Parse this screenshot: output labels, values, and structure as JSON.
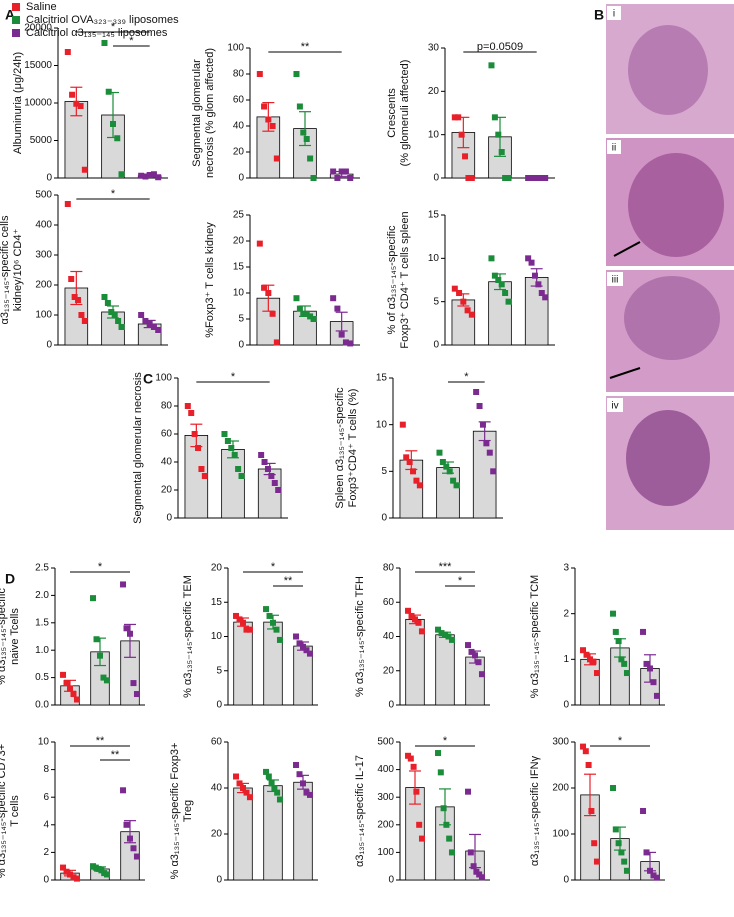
{
  "panel_labels": [
    "A",
    "B",
    "C",
    "D"
  ],
  "legend": [
    {
      "name": "Saline",
      "color": "#e8202a"
    },
    {
      "name": "Calcitriol OVA₃₂₃₋₃₃₉ liposomes",
      "color": "#1a8c3a"
    },
    {
      "name": "Calcitriol α3₁₃₅₋₁₄₅ liposomes",
      "color": "#7b2a8f"
    }
  ],
  "histology_panels": [
    "i",
    "ii",
    "iii",
    "iv"
  ],
  "chart_data": [
    {
      "type": "bar",
      "ylabel": [
        "Albuminuria (μg/24h)"
      ],
      "ylim": [
        0,
        20000
      ],
      "yticks": [
        0,
        5000,
        10000,
        15000,
        20000
      ],
      "means": [
        10200,
        8400,
        300
      ],
      "errors": [
        1900,
        3000,
        150
      ],
      "points": [
        [
          16800,
          11100,
          9900,
          9600,
          1100
        ],
        [
          18000,
          11500,
          7200,
          5300,
          500
        ],
        [
          300,
          200,
          400,
          500,
          100
        ]
      ],
      "annotations": [
        {
          "text": "*",
          "span": [
            0,
            2
          ]
        },
        {
          "text": "*",
          "span": [
            1,
            2
          ]
        }
      ]
    },
    {
      "type": "bar",
      "ylabel": [
        "Segmental glomerular",
        "necrosis (% glom affected)"
      ],
      "ylim": [
        0,
        100
      ],
      "yticks": [
        0,
        20,
        40,
        60,
        80,
        100
      ],
      "means": [
        47,
        38,
        3
      ],
      "errors": [
        11,
        13,
        2
      ],
      "points": [
        [
          80,
          55,
          45,
          40,
          15
        ],
        [
          80,
          55,
          35,
          30,
          15,
          0
        ],
        [
          5,
          0,
          5,
          5,
          0
        ]
      ],
      "annotations": [
        {
          "text": "**",
          "span": [
            0,
            2
          ]
        }
      ]
    },
    {
      "type": "bar",
      "ylabel": [
        "Crescents",
        "(% glomeruli affected)"
      ],
      "ylim": [
        0,
        30
      ],
      "yticks": [
        0,
        10,
        20,
        30
      ],
      "means": [
        10.5,
        9.5,
        0
      ],
      "errors": [
        3.5,
        4.5,
        0
      ],
      "points": [
        [
          14,
          14,
          10,
          5,
          0,
          0
        ],
        [
          26,
          14,
          10,
          6,
          0,
          0
        ],
        [
          0,
          0,
          0,
          0,
          0
        ]
      ],
      "annotations": [
        {
          "text": "p=0.0509",
          "span": [
            0,
            2
          ]
        }
      ]
    },
    {
      "type": "bar",
      "ylabel": [
        "α3₁₃₅₋₁₄₅-specific cells",
        "kidney/10⁶ CD4⁺"
      ],
      "ylim": [
        0,
        500
      ],
      "yticks": [
        0,
        100,
        200,
        300,
        400,
        500
      ],
      "means": [
        190,
        110,
        70
      ],
      "errors": [
        55,
        20,
        12
      ],
      "points": [
        [
          470,
          220,
          160,
          150,
          100,
          80
        ],
        [
          160,
          140,
          110,
          100,
          80,
          60
        ],
        [
          100,
          80,
          70,
          60,
          50
        ]
      ],
      "annotations": [
        {
          "text": "*",
          "span": [
            0,
            2
          ]
        }
      ]
    },
    {
      "type": "bar",
      "ylabel": [
        "%Foxp3⁺ T cells kidney"
      ],
      "ylim": [
        0,
        25
      ],
      "yticks": [
        0,
        5,
        10,
        15,
        20,
        25
      ],
      "means": [
        9,
        6.5,
        4.5
      ],
      "errors": [
        2.5,
        1,
        1.8
      ],
      "points": [
        [
          19.5,
          11,
          10,
          6,
          0.5
        ],
        [
          9,
          7,
          6,
          6,
          5.5,
          5
        ],
        [
          9,
          7,
          2,
          0.5,
          0.3
        ]
      ],
      "annotations": []
    },
    {
      "type": "bar",
      "ylabel": [
        "% of α3₁₃₅₋₁₄₅-specific",
        "Foxp3⁺ CD4⁺ T cells spleen"
      ],
      "ylim": [
        0,
        15
      ],
      "yticks": [
        0,
        5,
        10,
        15
      ],
      "means": [
        5.2,
        7.3,
        7.8
      ],
      "errors": [
        0.7,
        0.9,
        1
      ],
      "points": [
        [
          6.5,
          6,
          5,
          4,
          3.5
        ],
        [
          10,
          8,
          7.5,
          7,
          6,
          5
        ],
        [
          10,
          9.5,
          8,
          7,
          6,
          5.5
        ]
      ],
      "annotations": []
    },
    {
      "type": "bar",
      "ylabel": [
        "Segmental glomerular necrosis"
      ],
      "ylim": [
        0,
        100
      ],
      "yticks": [
        0,
        20,
        40,
        60,
        80,
        100
      ],
      "means": [
        59,
        49,
        35
      ],
      "errors": [
        8,
        6,
        4
      ],
      "points": [
        [
          80,
          75,
          60,
          50,
          35,
          30
        ],
        [
          60,
          55,
          50,
          45,
          35,
          30
        ],
        [
          45,
          40,
          35,
          30,
          25,
          20
        ]
      ],
      "annotations": [
        {
          "text": "*",
          "span": [
            0,
            2
          ]
        }
      ]
    },
    {
      "type": "bar",
      "ylabel": [
        "Spleen α3₁₃₅₋₁₄₅-specific",
        "Foxp3⁺CD4⁺ T cells (%)"
      ],
      "ylim": [
        0,
        15
      ],
      "yticks": [
        0,
        5,
        10,
        15
      ],
      "means": [
        6.2,
        5.4,
        9.3
      ],
      "errors": [
        1,
        0.6,
        1
      ],
      "points": [
        [
          10,
          6.5,
          6,
          5,
          4,
          3.5
        ],
        [
          7,
          6,
          5.5,
          5,
          4,
          3.5
        ],
        [
          13.5,
          12,
          10,
          8,
          7,
          5
        ]
      ],
      "annotations": [
        {
          "text": "*",
          "span": [
            1,
            2
          ]
        }
      ]
    },
    {
      "type": "bar",
      "ylabel": [
        "% α3₁₃₅₋₁₄₅-specific",
        "naive Tcells"
      ],
      "ylim": [
        0,
        2.5
      ],
      "yticks": [
        {
          "value": 0,
          "label": "0.0"
        },
        0.5,
        {
          "value": 1,
          "label": "1.0"
        },
        1.5,
        {
          "value": 2,
          "label": "2.0"
        },
        2.5
      ],
      "means": [
        0.35,
        0.97,
        1.17
      ],
      "errors": [
        0.1,
        0.25,
        0.3
      ],
      "points": [
        [
          0.55,
          0.4,
          0.3,
          0.2,
          0.1
        ],
        [
          1.95,
          1.2,
          0.9,
          0.5,
          0.45
        ],
        [
          2.2,
          1.4,
          1.3,
          0.4,
          0.2
        ]
      ],
      "annotations": [
        {
          "text": "*",
          "span": [
            0,
            2
          ]
        }
      ]
    },
    {
      "type": "bar",
      "ylabel": [
        "% α3₁₃₅₋₁₄₅-specific TEM"
      ],
      "ylim": [
        0,
        20
      ],
      "yticks": [
        0,
        5,
        10,
        15,
        20
      ],
      "means": [
        12.1,
        12.1,
        8.6
      ],
      "errors": [
        0.6,
        1,
        0.6
      ],
      "points": [
        [
          13,
          12.5,
          12,
          11,
          11
        ],
        [
          14,
          13,
          12,
          11,
          9.5
        ],
        [
          10,
          9,
          8.5,
          8,
          7.5
        ]
      ],
      "annotations": [
        {
          "text": "*",
          "span": [
            0,
            2
          ]
        },
        {
          "text": "**",
          "span": [
            1,
            2
          ]
        }
      ]
    },
    {
      "type": "bar",
      "ylabel": [
        "% α3₁₃₅₋₁₄₅-specific TFH"
      ],
      "ylim": [
        0,
        80
      ],
      "yticks": [
        0,
        20,
        40,
        60,
        80
      ],
      "means": [
        50,
        41,
        28
      ],
      "errors": [
        2.5,
        1.5,
        3.5
      ],
      "points": [
        [
          55,
          52,
          50,
          48,
          43
        ],
        [
          44,
          42,
          41,
          40,
          38
        ],
        [
          35,
          31,
          29,
          25,
          18
        ]
      ],
      "annotations": [
        {
          "text": "***",
          "span": [
            0,
            2
          ]
        },
        {
          "text": "*",
          "span": [
            1,
            2
          ]
        }
      ]
    },
    {
      "type": "bar",
      "ylabel": [
        "% α3₁₃₅₋₁₄₅-specific TCM"
      ],
      "ylim": [
        0,
        3
      ],
      "yticks": [
        0,
        1,
        2,
        3
      ],
      "means": [
        1.0,
        1.25,
        0.8
      ],
      "errors": [
        0.12,
        0.2,
        0.3
      ],
      "points": [
        [
          1.2,
          1.1,
          1,
          0.95,
          0.7
        ],
        [
          2,
          1.6,
          1.4,
          1,
          0.9,
          0.7
        ],
        [
          1.6,
          0.9,
          0.8,
          0.5,
          0.2
        ]
      ],
      "annotations": []
    },
    {
      "type": "bar",
      "ylabel": [
        "% α3₁₃₅₋₁₄₅-specific CD73+",
        "T cells"
      ],
      "ylim": [
        0,
        10
      ],
      "yticks": [
        0,
        2,
        4,
        6,
        8,
        10
      ],
      "means": [
        0.5,
        0.8,
        3.5
      ],
      "errors": [
        0.2,
        0.15,
        0.8
      ],
      "points": [
        [
          0.9,
          0.6,
          0.4,
          0.2,
          0.1
        ],
        [
          1,
          0.9,
          0.8,
          0.7,
          0.5,
          0.4
        ],
        [
          6.5,
          4,
          3,
          2.3,
          1.7
        ]
      ],
      "annotations": [
        {
          "text": "**",
          "span": [
            0,
            2
          ]
        },
        {
          "text": "**",
          "span": [
            1,
            2
          ]
        }
      ]
    },
    {
      "type": "bar",
      "ylabel": [
        "% α3₁₃₅₋₁₄₅-specific Foxp3+",
        "Treg"
      ],
      "ylim": [
        0,
        60
      ],
      "yticks": [
        0,
        20,
        40,
        60
      ],
      "means": [
        40,
        41,
        42.5
      ],
      "errors": [
        2,
        2.5,
        3
      ],
      "points": [
        [
          45,
          42,
          40,
          38,
          36
        ],
        [
          47,
          45,
          42,
          40,
          38,
          35
        ],
        [
          50,
          46,
          42,
          38,
          37
        ]
      ],
      "annotations": []
    },
    {
      "type": "bar",
      "ylabel": [
        "α3₁₃₅₋₁₄₅-specific IL-17"
      ],
      "ylim": [
        0,
        500
      ],
      "yticks": [
        0,
        100,
        200,
        300,
        400,
        500
      ],
      "means": [
        335,
        265,
        105
      ],
      "errors": [
        60,
        65,
        60
      ],
      "points": [
        [
          450,
          440,
          410,
          320,
          200,
          150
        ],
        [
          460,
          390,
          260,
          200,
          150,
          100
        ],
        [
          320,
          100,
          50,
          30,
          20,
          10
        ]
      ],
      "annotations": [
        {
          "text": "*",
          "span": [
            0,
            2
          ]
        }
      ]
    },
    {
      "type": "bar",
      "ylabel": [
        "α3₁₃₅₋₁₄₅-specific IFNγ"
      ],
      "ylim": [
        0,
        300
      ],
      "yticks": [
        0,
        100,
        200,
        300
      ],
      "means": [
        185,
        90,
        40
      ],
      "errors": [
        45,
        25,
        20
      ],
      "points": [
        [
          290,
          280,
          250,
          150,
          80,
          40
        ],
        [
          200,
          110,
          80,
          60,
          40,
          20
        ],
        [
          150,
          60,
          20,
          10,
          5
        ]
      ],
      "annotations": [
        {
          "text": "*",
          "span": [
            0,
            2
          ]
        }
      ]
    }
  ]
}
